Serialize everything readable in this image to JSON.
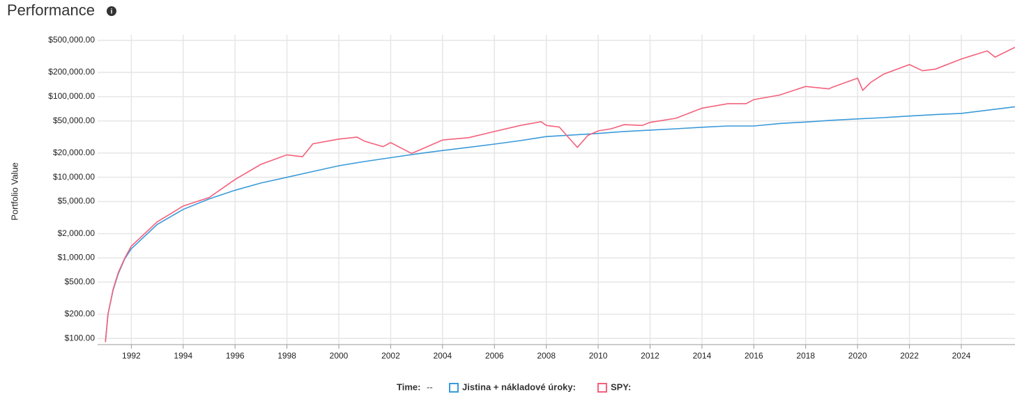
{
  "chart_data": {
    "type": "line",
    "title": "Performance",
    "y_label": "Portfolio Value",
    "legend_time_label": "Time:",
    "legend_time_value": "--",
    "log_y": true,
    "grid": true,
    "xlim": [
      1990.7,
      2026.07
    ],
    "xticks": [
      1992,
      1994,
      1996,
      1998,
      2000,
      2002,
      2004,
      2006,
      2008,
      2010,
      2012,
      2014,
      2016,
      2018,
      2020,
      2022,
      2024
    ],
    "ylim": [
      84,
      586000
    ],
    "yticks": [
      {
        "value": 100,
        "label": "$100.00"
      },
      {
        "value": 200,
        "label": "$200.00"
      },
      {
        "value": 500,
        "label": "$500.00"
      },
      {
        "value": 1000,
        "label": "$1,000.00"
      },
      {
        "value": 2000,
        "label": "$2,000.00"
      },
      {
        "value": 5000,
        "label": "$5,000.00"
      },
      {
        "value": 10000,
        "label": "$10,000.00"
      },
      {
        "value": 20000,
        "label": "$20,000.00"
      },
      {
        "value": 50000,
        "label": "$50,000.00"
      },
      {
        "value": 100000,
        "label": "$100,000.00"
      },
      {
        "value": 200000,
        "label": "$200,000.00"
      },
      {
        "value": 500000,
        "label": "$500,000.00"
      }
    ],
    "series": [
      {
        "name": "Jistina + nákladové úroky:",
        "color": "#3a9ad9",
        "x": [
          1991.0,
          1991.1,
          1991.3,
          1991.5,
          1991.75,
          1992,
          1993,
          1994,
          1995,
          1996,
          1997,
          1998,
          1999,
          2000,
          2001,
          2002,
          2003,
          2004,
          2005,
          2006,
          2007,
          2008,
          2009,
          2010,
          2011,
          2012,
          2013,
          2014,
          2015,
          2016,
          2017,
          2018,
          2019,
          2020,
          2021,
          2022,
          2023,
          2024,
          2025,
          2026.07
        ],
        "values": [
          90,
          200,
          400,
          640,
          980,
          1300,
          2600,
          4000,
          5400,
          6900,
          8500,
          10000,
          11800,
          13900,
          15700,
          17500,
          19500,
          21500,
          23500,
          25800,
          28500,
          32000,
          33500,
          35000,
          37000,
          38500,
          40000,
          41800,
          43300,
          43300,
          46500,
          48500,
          51000,
          53000,
          55000,
          57500,
          60000,
          62000,
          68000,
          75000
        ]
      },
      {
        "name": "SPY:",
        "color": "#f4607b",
        "x": [
          1991.0,
          1991.1,
          1991.3,
          1991.5,
          1991.75,
          1992,
          1993,
          1994,
          1995,
          1996,
          1997,
          1998,
          1998.6,
          1999,
          2000,
          2000.7,
          2001,
          2001.7,
          2002,
          2002.8,
          2003,
          2004,
          2005,
          2006,
          2007,
          2007.8,
          2008,
          2008.5,
          2008.9,
          2009.2,
          2009.6,
          2010,
          2010.5,
          2011,
          2011.7,
          2012,
          2013,
          2014,
          2015,
          2015.7,
          2016,
          2017,
          2018,
          2018.9,
          2019,
          2020,
          2020.2,
          2020.5,
          2021,
          2022,
          2022.5,
          2023,
          2024,
          2025,
          2025.3,
          2026.07
        ],
        "values": [
          90,
          200,
          410,
          660,
          1000,
          1400,
          2800,
          4400,
          5600,
          9400,
          14500,
          19000,
          18000,
          26000,
          29800,
          31500,
          28000,
          24000,
          26900,
          19800,
          21000,
          29000,
          31000,
          37000,
          44000,
          49000,
          44000,
          42000,
          30000,
          23500,
          33000,
          37700,
          40000,
          45000,
          44000,
          48000,
          54000,
          72000,
          82000,
          82000,
          92000,
          105000,
          134000,
          125000,
          130000,
          170000,
          120000,
          150000,
          190000,
          250000,
          210000,
          220000,
          294000,
          370000,
          310000,
          410000
        ]
      }
    ]
  }
}
